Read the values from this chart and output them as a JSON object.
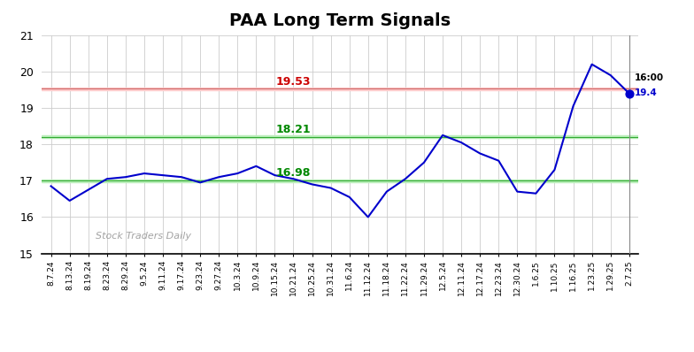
{
  "title": "PAA Long Term Signals",
  "title_fontsize": 14,
  "title_fontweight": "bold",
  "watermark": "Stock Traders Daily",
  "hline_red": 19.53,
  "hline_green1": 18.21,
  "hline_green2": 17.0,
  "hline_red_fill_color": "#ffcccc",
  "hline_green_fill_color": "#bbeebb",
  "label_red": "19.53",
  "label_green1": "18.21",
  "label_green2": "16.98",
  "last_price": "19.4",
  "last_label": "16:00",
  "ylim": [
    15,
    21
  ],
  "yticks": [
    15,
    16,
    17,
    18,
    19,
    20,
    21
  ],
  "line_color": "#0000cc",
  "line_width": 1.5,
  "dot_color": "#0000cc",
  "background_color": "#ffffff",
  "grid_color": "#cccccc",
  "x_dates": [
    "8.7.24",
    "8.13.24",
    "8.19.24",
    "8.23.24",
    "8.29.24",
    "9.5.24",
    "9.11.24",
    "9.17.24",
    "9.23.24",
    "9.27.24",
    "10.3.24",
    "10.9.24",
    "10.15.24",
    "10.21.24",
    "10.25.24",
    "10.31.24",
    "11.6.24",
    "11.12.24",
    "11.18.24",
    "11.22.24",
    "11.29.24",
    "12.5.24",
    "12.11.24",
    "12.17.24",
    "12.23.24",
    "12.30.24",
    "1.6.25",
    "1.10.25",
    "1.16.25",
    "1.23.25",
    "1.29.25",
    "2.7.25"
  ],
  "y_values": [
    16.85,
    16.45,
    16.75,
    17.05,
    17.1,
    17.2,
    17.15,
    17.1,
    16.95,
    17.1,
    17.2,
    17.4,
    17.15,
    17.05,
    16.9,
    16.8,
    16.55,
    16.0,
    16.7,
    17.05,
    17.5,
    18.25,
    18.05,
    17.75,
    17.55,
    16.7,
    16.65,
    17.3,
    19.05,
    20.2,
    19.9,
    19.4
  ]
}
